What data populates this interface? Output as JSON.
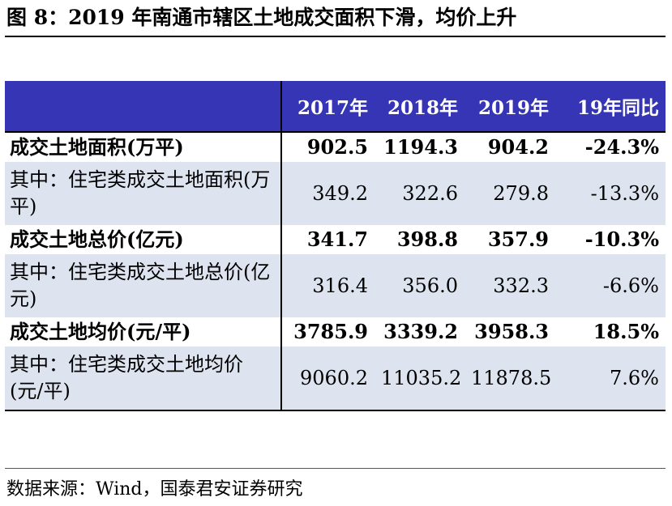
{
  "title": "图 8：2019 年南通市辖区土地成交面积下滑，均价上升",
  "source": "数据来源：Wind，国泰君安证券研究",
  "chart_data": {
    "type": "table",
    "columns": [
      "",
      "2017年",
      "2018年",
      "2019年",
      "19年同比"
    ],
    "rows": [
      {
        "label": "成交土地面积(万平)",
        "values": [
          "902.5",
          "1194.3",
          "904.2",
          "-24.3%"
        ],
        "bold": true
      },
      {
        "label": "其中：住宅类成交土地面积(万平)",
        "values": [
          "349.2",
          "322.6",
          "279.8",
          "-13.3%"
        ],
        "bold": false
      },
      {
        "label": "成交土地总价(亿元)",
        "values": [
          "341.7",
          "398.8",
          "357.9",
          "-10.3%"
        ],
        "bold": true
      },
      {
        "label": "其中：住宅类成交土地总价(亿元)",
        "values": [
          "316.4",
          "356.0",
          "332.3",
          "-6.6%"
        ],
        "bold": false
      },
      {
        "label": "成交土地均价(元/平)",
        "values": [
          "3785.9",
          "3339.2",
          "3958.3",
          "18.5%"
        ],
        "bold": true
      },
      {
        "label": "其中：住宅类成交土地均价(元/平)",
        "values": [
          "9060.2",
          "11035.2",
          "11878.5",
          "7.6%"
        ],
        "bold": false
      }
    ]
  },
  "colors": {
    "header_bg": "#3535b5",
    "sub_row_bg": "#dde3ef"
  }
}
